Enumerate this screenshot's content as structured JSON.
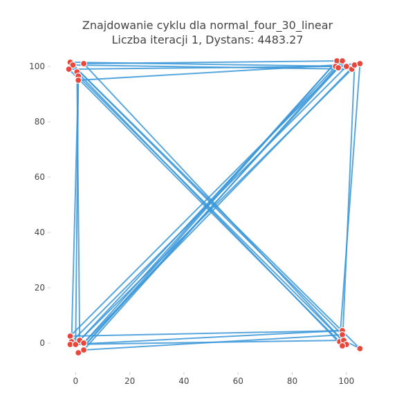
{
  "chart_data": {
    "type": "scatter",
    "title": "Znajdowanie cyklu dla normal_four_30_linear",
    "subtitle": "Liczba iteracji 1, Dystans: 4483.27",
    "xlabel": "",
    "ylabel": "",
    "xlim": [
      -8,
      110
    ],
    "ylim": [
      -10,
      106
    ],
    "xticks": [
      0,
      20,
      40,
      60,
      80,
      100
    ],
    "yticks": [
      0,
      20,
      40,
      60,
      80,
      100
    ],
    "grid": false,
    "colors": {
      "line": "#3a96d8",
      "point": "#e8473b",
      "text": "#444444"
    },
    "points": [
      {
        "x": -2.0,
        "y": 101.5
      },
      {
        "x": -1.0,
        "y": 100.5
      },
      {
        "x": 3.0,
        "y": 101.0
      },
      {
        "x": -2.5,
        "y": 99.0
      },
      {
        "x": 0.5,
        "y": 98.0
      },
      {
        "x": 1.0,
        "y": 96.5
      },
      {
        "x": 1.0,
        "y": 95.0
      },
      {
        "x": 96.5,
        "y": 102.0
      },
      {
        "x": 98.5,
        "y": 102.0
      },
      {
        "x": 96.0,
        "y": 100.0
      },
      {
        "x": 97.0,
        "y": 99.5
      },
      {
        "x": 100.0,
        "y": 100.0
      },
      {
        "x": 102.0,
        "y": 99.0
      },
      {
        "x": 103.0,
        "y": 100.5
      },
      {
        "x": 105.0,
        "y": 101.0
      },
      {
        "x": -2.0,
        "y": 2.5
      },
      {
        "x": -1.5,
        "y": 0.5
      },
      {
        "x": -2.0,
        "y": -0.5
      },
      {
        "x": 0.0,
        "y": -0.5
      },
      {
        "x": 1.5,
        "y": 1.0
      },
      {
        "x": 3.0,
        "y": 0.0
      },
      {
        "x": 3.0,
        "y": -2.5
      },
      {
        "x": 1.0,
        "y": -3.5
      },
      {
        "x": 98.5,
        "y": 4.5
      },
      {
        "x": 98.5,
        "y": 3.0
      },
      {
        "x": 97.5,
        "y": 0.5
      },
      {
        "x": 99.0,
        "y": 1.0
      },
      {
        "x": 100.0,
        "y": -0.5
      },
      {
        "x": 98.5,
        "y": -1.0
      },
      {
        "x": 105.0,
        "y": -2.0
      }
    ],
    "tour": [
      0,
      11,
      16,
      5,
      27,
      2,
      8,
      21,
      24,
      1,
      12,
      18,
      6,
      14,
      25,
      3,
      9,
      19,
      4,
      28,
      13,
      20,
      7,
      22,
      10,
      15,
      23,
      17,
      26,
      29,
      0
    ]
  }
}
